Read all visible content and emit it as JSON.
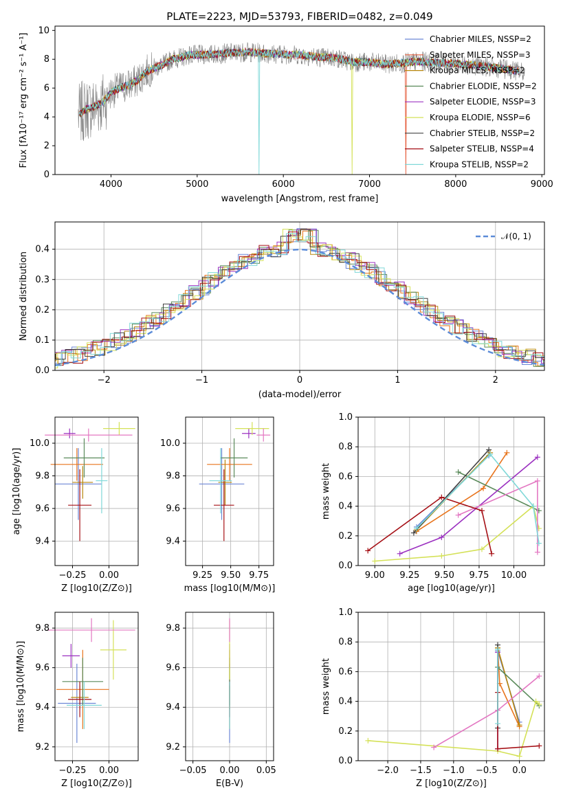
{
  "chart_data": [
    {
      "id": "spectrum",
      "type": "line",
      "title": "PLATE=2223, MJD=53793, FIBERID=0482, z=0.049",
      "xlabel": "wavelength [Angstrom, rest frame]",
      "ylabel": "Flux [fλ10⁻¹⁷ erg cm⁻² s⁻¹ A⁻¹]",
      "xlim": [
        3350,
        9030
      ],
      "ylim": [
        0,
        10.3
      ],
      "xticks": [
        4000,
        5000,
        6000,
        7000,
        8000,
        9000
      ],
      "yticks": [
        0,
        2,
        4,
        6,
        8,
        10
      ],
      "grid": false,
      "legend_position": "right",
      "data_color": "#808080",
      "spectrum_continuum": {
        "x": [
          3620,
          3700,
          3800,
          3900,
          4000,
          4100,
          4200,
          4300,
          4400,
          4500,
          4600,
          4700,
          4800,
          4900,
          5000,
          5200,
          5400,
          5600,
          5800,
          6000,
          6200,
          6400,
          6600,
          6800,
          7000,
          7200,
          7400,
          7600,
          7800,
          8000,
          8200,
          8400,
          8600,
          8800
        ],
        "y": [
          4.1,
          4.5,
          4.7,
          5.0,
          5.7,
          6.0,
          6.2,
          6.5,
          7.1,
          7.4,
          7.6,
          8.0,
          8.1,
          8.3,
          8.3,
          8.35,
          8.45,
          8.5,
          8.4,
          8.35,
          8.3,
          8.15,
          8.1,
          7.8,
          7.8,
          7.65,
          7.75,
          7.85,
          7.75,
          7.7,
          7.6,
          7.45,
          7.3,
          7.1
        ]
      },
      "series": [
        {
          "name": "Chabrier MILES, NSSP=2",
          "color": "#6b86d6",
          "drop_at": null
        },
        {
          "name": "Salpeter MILES, NSSP=3",
          "color": "#e55c3b",
          "drop_at": 7420
        },
        {
          "name": "Kroupa MILES, NSSP=2",
          "color": "#b8860b",
          "drop_at": null
        },
        {
          "name": "Chabrier ELODIE, NSSP=2",
          "color": "#5a8a5a",
          "drop_at": null
        },
        {
          "name": "Salpeter ELODIE, NSSP=3",
          "color": "#9b30c0",
          "drop_at": null
        },
        {
          "name": "Kroupa ELODIE, NSSP=6",
          "color": "#d4e157",
          "drop_at": 6800
        },
        {
          "name": "Chabrier STELIB, NSSP=2",
          "color": "#404040",
          "drop_at": null
        },
        {
          "name": "Salpeter STELIB, NSSP=4",
          "color": "#a50f15",
          "drop_at": null
        },
        {
          "name": "Kroupa STELIB, NSSP=2",
          "color": "#7fd8d8",
          "drop_at": 5720
        }
      ]
    },
    {
      "id": "residuals",
      "type": "line",
      "xlabel": "(data-model)/error",
      "ylabel": "Normed distribution",
      "xlim": [
        -2.5,
        2.5
      ],
      "ylim": [
        0,
        0.49
      ],
      "xticks": [
        -2,
        -1,
        0,
        1,
        2
      ],
      "yticks": [
        0.0,
        0.1,
        0.2,
        0.3,
        0.4
      ],
      "grid": true,
      "legend_position": "top-right",
      "legend_entry": "𝒩(0, 1)",
      "normal_color": "#5b8bd8",
      "histogram_colors": [
        "#6b86d6",
        "#e8731a",
        "#b8860b",
        "#5a8a5a",
        "#9b30c0",
        "#d4e157",
        "#404040",
        "#a50f15",
        "#7fd8d8"
      ]
    },
    {
      "id": "z-age",
      "type": "scatter",
      "xlabel": "Z [log10(Z/Z⊙)]",
      "ylabel": "age  [log10(age/yr)]",
      "xlim": [
        -0.37,
        0.2
      ],
      "ylim": [
        9.25,
        10.16
      ],
      "xticks": [
        -0.25,
        0.0
      ],
      "xtick_labels": [
        "−0.25",
        "0.00"
      ],
      "yticks": [
        9.4,
        9.6,
        9.8,
        10.0
      ],
      "ytick_labels": [
        "9.4",
        "9.6",
        "9.8",
        "10.0"
      ],
      "grid": true,
      "points": [
        {
          "x": -0.21,
          "y": 9.75,
          "xerr": 0.16,
          "yerr": 0.22,
          "color": "#6b86d6"
        },
        {
          "x": -0.22,
          "y": 9.87,
          "xerr": 0.18,
          "yerr": 0.1,
          "color": "#e8731a"
        },
        {
          "x": -0.18,
          "y": 9.76,
          "xerr": 0.07,
          "yerr": 0.1,
          "color": "#b8860b"
        },
        {
          "x": -0.17,
          "y": 9.91,
          "xerr": 0.14,
          "yerr": 0.12,
          "color": "#5a8a5a"
        },
        {
          "x": -0.27,
          "y": 10.06,
          "xerr": 0.04,
          "yerr": 0.03,
          "color": "#9b30c0"
        },
        {
          "x": 0.07,
          "y": 10.09,
          "xerr": 0.11,
          "yerr": 0.04,
          "color": "#d4e157"
        },
        {
          "x": -0.14,
          "y": 10.05,
          "xerr": 0.3,
          "yerr": 0.04,
          "color": "#e377c2"
        },
        {
          "x": -0.2,
          "y": 9.62,
          "xerr": 0.08,
          "yerr": 0.22,
          "color": "#a50f15"
        },
        {
          "x": -0.05,
          "y": 9.77,
          "xerr": 0.04,
          "yerr": 0.2,
          "color": "#7fd8d8"
        }
      ]
    },
    {
      "id": "mass-age",
      "type": "scatter",
      "xlabel": "mass [log10(M/M⊙)]",
      "ylabel": "",
      "xlim": [
        9.1,
        9.88
      ],
      "ylim": [
        9.25,
        10.16
      ],
      "xticks": [
        9.25,
        9.5,
        9.75
      ],
      "xtick_labels": [
        "9.25",
        "9.50",
        "9.75"
      ],
      "yticks": [
        9.4,
        9.6,
        9.8,
        10.0
      ],
      "ytick_labels": [
        "9.4",
        "9.6",
        "9.8",
        "10.0"
      ],
      "grid": true,
      "points": [
        {
          "x": 9.42,
          "y": 9.75,
          "xerr": 0.2,
          "yerr": 0.22,
          "color": "#6b86d6"
        },
        {
          "x": 9.49,
          "y": 9.87,
          "xerr": 0.2,
          "yerr": 0.1,
          "color": "#e8731a"
        },
        {
          "x": 9.45,
          "y": 9.76,
          "xerr": 0.06,
          "yerr": 0.14,
          "color": "#b8860b"
        },
        {
          "x": 9.53,
          "y": 9.91,
          "xerr": 0.12,
          "yerr": 0.12,
          "color": "#5a8a5a"
        },
        {
          "x": 9.66,
          "y": 10.06,
          "xerr": 0.06,
          "yerr": 0.03,
          "color": "#9b30c0"
        },
        {
          "x": 9.69,
          "y": 10.09,
          "xerr": 0.15,
          "yerr": 0.04,
          "color": "#d4e157"
        },
        {
          "x": 9.79,
          "y": 10.05,
          "xerr": 0.06,
          "yerr": 0.04,
          "color": "#e377c2"
        },
        {
          "x": 9.44,
          "y": 9.62,
          "xerr": 0.09,
          "yerr": 0.22,
          "color": "#a50f15"
        },
        {
          "x": 9.41,
          "y": 9.77,
          "xerr": 0.1,
          "yerr": 0.2,
          "color": "#7fd8d8"
        }
      ]
    },
    {
      "id": "age-weight",
      "type": "line",
      "xlabel": "age  [log10(age/yr)]",
      "ylabel": "mass weight",
      "xlim": [
        8.88,
        10.22
      ],
      "ylim": [
        0,
        1.0
      ],
      "xticks": [
        9.0,
        9.25,
        9.5,
        9.75,
        10.0
      ],
      "xtick_labels": [
        "9.00",
        "9.25",
        "9.50",
        "9.75",
        "10.00"
      ],
      "yticks": [
        0.0,
        0.2,
        0.4,
        0.6,
        0.8,
        1.0
      ],
      "ytick_labels": [
        "0.0",
        "0.2",
        "0.4",
        "0.6",
        "0.8",
        "1.0"
      ],
      "grid": true,
      "series": [
        {
          "color": "#6b86d6",
          "x": [
            9.3,
            9.82
          ],
          "y": [
            0.26,
            0.74
          ]
        },
        {
          "color": "#e8731a",
          "x": [
            9.3,
            9.78,
            9.95
          ],
          "y": [
            0.23,
            0.52,
            0.76
          ]
        },
        {
          "color": "#b8860b",
          "x": [
            9.3,
            9.83
          ],
          "y": [
            0.24,
            0.76
          ]
        },
        {
          "color": "#5a8a5a",
          "x": [
            9.6,
            10.18
          ],
          "y": [
            0.63,
            0.37
          ]
        },
        {
          "color": "#9b30c0",
          "x": [
            9.18,
            9.48,
            10.17
          ],
          "y": [
            0.08,
            0.19,
            0.73
          ]
        },
        {
          "color": "#d4e157",
          "x": [
            9.0,
            9.48,
            9.77,
            10.14,
            10.18
          ],
          "y": [
            0.03,
            0.065,
            0.11,
            0.4,
            0.25
          ]
        },
        {
          "color": "#e377c2",
          "x": [
            9.6,
            10.17,
            10.17
          ],
          "y": [
            0.34,
            0.57,
            0.09
          ]
        },
        {
          "color": "#404040",
          "x": [
            9.28,
            9.82
          ],
          "y": [
            0.22,
            0.78
          ]
        },
        {
          "color": "#a50f15",
          "x": [
            8.95,
            9.48,
            9.77,
            9.84
          ],
          "y": [
            0.1,
            0.46,
            0.37,
            0.08
          ]
        },
        {
          "color": "#7fd8d8",
          "x": [
            9.3,
            9.83,
            10.14,
            10.18
          ],
          "y": [
            0.25,
            0.75,
            0.4,
            0.15
          ]
        }
      ]
    },
    {
      "id": "z-mass",
      "type": "scatter",
      "xlabel": "Z [log10(Z/Z⊙)]",
      "ylabel": "mass [log10(M/M⊙)]",
      "xlim": [
        -0.37,
        0.2
      ],
      "ylim": [
        9.13,
        9.88
      ],
      "xticks": [
        -0.25,
        0.0
      ],
      "xtick_labels": [
        "−0.25",
        "0.00"
      ],
      "yticks": [
        9.2,
        9.4,
        9.6,
        9.8
      ],
      "ytick_labels": [
        "9.2",
        "9.4",
        "9.6",
        "9.8"
      ],
      "grid": true,
      "points": [
        {
          "x": -0.22,
          "y": 9.42,
          "xerr": 0.13,
          "yerr": 0.2,
          "color": "#6b86d6"
        },
        {
          "x": -0.18,
          "y": 9.49,
          "xerr": 0.18,
          "yerr": 0.2,
          "color": "#e8731a"
        },
        {
          "x": -0.2,
          "y": 9.45,
          "xerr": 0.06,
          "yerr": 0.06,
          "color": "#b8860b"
        },
        {
          "x": -0.18,
          "y": 9.53,
          "xerr": 0.14,
          "yerr": 0.12,
          "color": "#5a8a5a"
        },
        {
          "x": -0.26,
          "y": 9.66,
          "xerr": 0.06,
          "yerr": 0.06,
          "color": "#9b30c0"
        },
        {
          "x": 0.03,
          "y": 9.69,
          "xerr": 0.09,
          "yerr": 0.15,
          "color": "#d4e157"
        },
        {
          "x": -0.12,
          "y": 9.79,
          "xerr": 0.3,
          "yerr": 0.06,
          "color": "#e377c2"
        },
        {
          "x": -0.2,
          "y": 9.44,
          "xerr": 0.08,
          "yerr": 0.09,
          "color": "#a50f15"
        },
        {
          "x": -0.17,
          "y": 9.41,
          "xerr": 0.12,
          "yerr": 0.12,
          "color": "#7fd8d8"
        }
      ]
    },
    {
      "id": "ebv-mass",
      "type": "scatter",
      "xlabel": "E(B-V)",
      "ylabel": "",
      "xlim": [
        -0.06,
        0.06
      ],
      "ylim": [
        9.13,
        9.88
      ],
      "xticks": [
        -0.05,
        0.0,
        0.05
      ],
      "xtick_labels": [
        "−0.05",
        "0.00",
        "0.05"
      ],
      "yticks": [
        9.2,
        9.4,
        9.6,
        9.8
      ],
      "ytick_labels": [
        "9.2",
        "9.4",
        "9.6",
        "9.8"
      ],
      "grid": true,
      "points": [
        {
          "x": 0.0,
          "y": 9.42,
          "yerr": 0.2,
          "color": "#6b86d6"
        },
        {
          "x": 0.0,
          "y": 9.49,
          "yerr": 0.2,
          "color": "#e8731a"
        },
        {
          "x": 0.0,
          "y": 9.45,
          "yerr": 0.06,
          "color": "#b8860b"
        },
        {
          "x": 0.0,
          "y": 9.53,
          "yerr": 0.12,
          "color": "#5a8a5a"
        },
        {
          "x": 0.0,
          "y": 9.66,
          "yerr": 0.06,
          "color": "#9b30c0"
        },
        {
          "x": 0.0,
          "y": 9.69,
          "yerr": 0.15,
          "color": "#d4e157"
        },
        {
          "x": 0.0,
          "y": 9.79,
          "yerr": 0.06,
          "color": "#e377c2"
        },
        {
          "x": 0.0,
          "y": 9.44,
          "yerr": 0.09,
          "color": "#a50f15"
        },
        {
          "x": 0.0,
          "y": 9.41,
          "yerr": 0.12,
          "color": "#7fd8d8"
        }
      ]
    },
    {
      "id": "z-weight",
      "type": "line",
      "xlabel": "Z [log10(Z/Z⊙)]",
      "ylabel": "mass weight",
      "xlim": [
        -2.45,
        0.38
      ],
      "ylim": [
        0,
        1.0
      ],
      "xticks": [
        -2.0,
        -1.5,
        -1.0,
        -0.5,
        0.0
      ],
      "xtick_labels": [
        "−2.0",
        "−1.5",
        "−1.0",
        "−0.5",
        "0.0"
      ],
      "yticks": [
        0.0,
        0.2,
        0.4,
        0.6,
        0.8,
        1.0
      ],
      "ytick_labels": [
        "0.0",
        "0.2",
        "0.4",
        "0.6",
        "0.8",
        "1.0"
      ],
      "grid": true,
      "series": [
        {
          "color": "#6b86d6",
          "x": [
            -0.33,
            0.0
          ],
          "y": [
            0.74,
            0.26
          ]
        },
        {
          "color": "#e8731a",
          "x": [
            -0.33,
            -0.3,
            0.0
          ],
          "y": [
            0.76,
            0.52,
            0.23
          ]
        },
        {
          "color": "#b8860b",
          "x": [
            -0.33,
            0.0
          ],
          "y": [
            0.76,
            0.24
          ]
        },
        {
          "color": "#5a8a5a",
          "x": [
            -0.33,
            0.3
          ],
          "y": [
            0.63,
            0.37
          ]
        },
        {
          "color": "#9b30c0",
          "x": [
            -0.33,
            -0.33
          ],
          "y": [
            0.73,
            0.08
          ]
        },
        {
          "color": "#d4e157",
          "x": [
            -2.3,
            -0.33,
            0.0,
            0.25,
            0.3
          ],
          "y": [
            0.135,
            0.065,
            0.03,
            0.4,
            0.38
          ]
        },
        {
          "color": "#e377c2",
          "x": [
            -1.3,
            -0.33,
            0.3
          ],
          "y": [
            0.09,
            0.34,
            0.57
          ]
        },
        {
          "color": "#404040",
          "x": [
            -0.33,
            -0.33
          ],
          "y": [
            0.78,
            0.22
          ]
        },
        {
          "color": "#a50f15",
          "x": [
            -0.33,
            -0.33,
            0.3
          ],
          "y": [
            0.46,
            0.08,
            0.1
          ]
        },
        {
          "color": "#7fd8d8",
          "x": [
            -0.33,
            -0.33
          ],
          "y": [
            0.75,
            0.25
          ]
        }
      ]
    }
  ]
}
